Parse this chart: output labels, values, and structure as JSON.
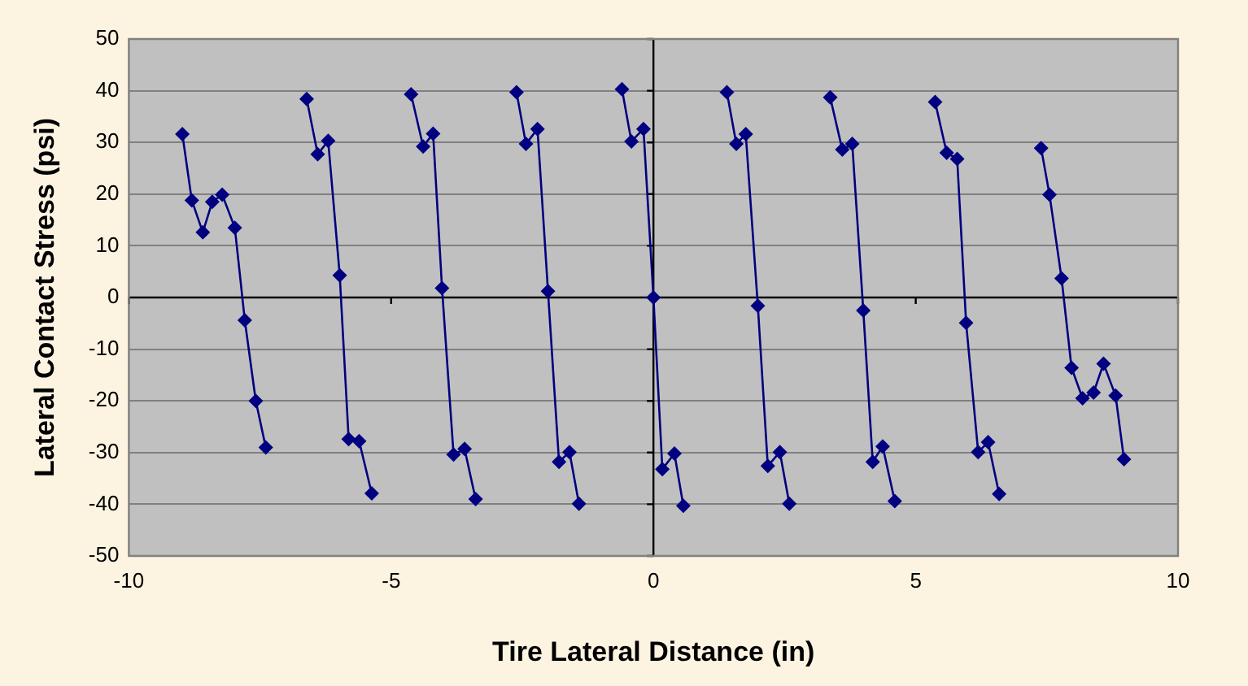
{
  "chart_data": {
    "type": "line",
    "xlabel": "Tire Lateral Distance (in)",
    "ylabel": "Lateral Contact Stress (psi)",
    "xlim": [
      -10,
      10
    ],
    "xticks": [
      -10,
      -5,
      0,
      5,
      10
    ],
    "ylim": [
      -50,
      50
    ],
    "yticks": [
      -50,
      -40,
      -30,
      -20,
      -10,
      0,
      10,
      20,
      30,
      40,
      50
    ],
    "grid": "y",
    "legend": false,
    "marker": "diamond",
    "line_style": "solid",
    "series": [
      {
        "color": "#000080",
        "x": [
          -8.98,
          -8.8,
          -8.59,
          -8.41,
          -8.22,
          -7.98,
          -7.79,
          -7.58,
          -7.39
        ],
        "values": [
          31.6,
          18.8,
          12.6,
          18.5,
          19.9,
          13.5,
          -4.4,
          -20,
          -29
        ]
      },
      {
        "color": "#000080",
        "x": [
          -6.61,
          -6.4,
          -6.2,
          -5.98,
          -5.81,
          -5.61,
          -5.37
        ],
        "values": [
          38.4,
          27.7,
          30.3,
          4.3,
          -27.4,
          -27.8,
          -37.9
        ]
      },
      {
        "color": "#000080",
        "x": [
          -4.62,
          -4.39,
          -4.2,
          -4.03,
          -3.81,
          -3.6,
          -3.39
        ],
        "values": [
          39.3,
          29.2,
          31.7,
          1.8,
          -30.4,
          -29.3,
          -39
        ]
      },
      {
        "color": "#000080",
        "x": [
          -2.61,
          -2.43,
          -2.21,
          -2.01,
          -1.8,
          -1.6,
          -1.42
        ],
        "values": [
          39.7,
          29.7,
          32.6,
          1.2,
          -31.8,
          -29.9,
          -39.9
        ]
      },
      {
        "color": "#000080",
        "x": [
          -0.6,
          -0.42,
          -0.19,
          0,
          0.17,
          0.4,
          0.57
        ],
        "values": [
          40.3,
          30.2,
          32.6,
          0,
          -33.2,
          -30.2,
          -40.3
        ]
      },
      {
        "color": "#000080",
        "x": [
          1.4,
          1.58,
          1.76,
          1.99,
          2.18,
          2.41,
          2.59
        ],
        "values": [
          39.7,
          29.7,
          31.6,
          -1.6,
          -32.6,
          -29.9,
          -39.9
        ]
      },
      {
        "color": "#000080",
        "x": [
          3.37,
          3.6,
          3.79,
          4,
          4.18,
          4.37,
          4.6
        ],
        "values": [
          38.7,
          28.6,
          29.7,
          -2.5,
          -31.8,
          -28.8,
          -39.4
        ]
      },
      {
        "color": "#000080",
        "x": [
          5.37,
          5.59,
          5.79,
          5.96,
          6.19,
          6.38,
          6.59
        ],
        "values": [
          37.8,
          28,
          26.8,
          -4.9,
          -29.9,
          -28,
          -38
        ]
      },
      {
        "color": "#000080",
        "x": [
          7.39,
          7.55,
          7.78,
          7.97,
          8.18,
          8.39,
          8.58,
          8.81,
          8.97
        ],
        "values": [
          28.9,
          19.9,
          3.7,
          -13.6,
          -19.5,
          -18.4,
          -12.8,
          -19,
          -31.3
        ]
      }
    ]
  }
}
